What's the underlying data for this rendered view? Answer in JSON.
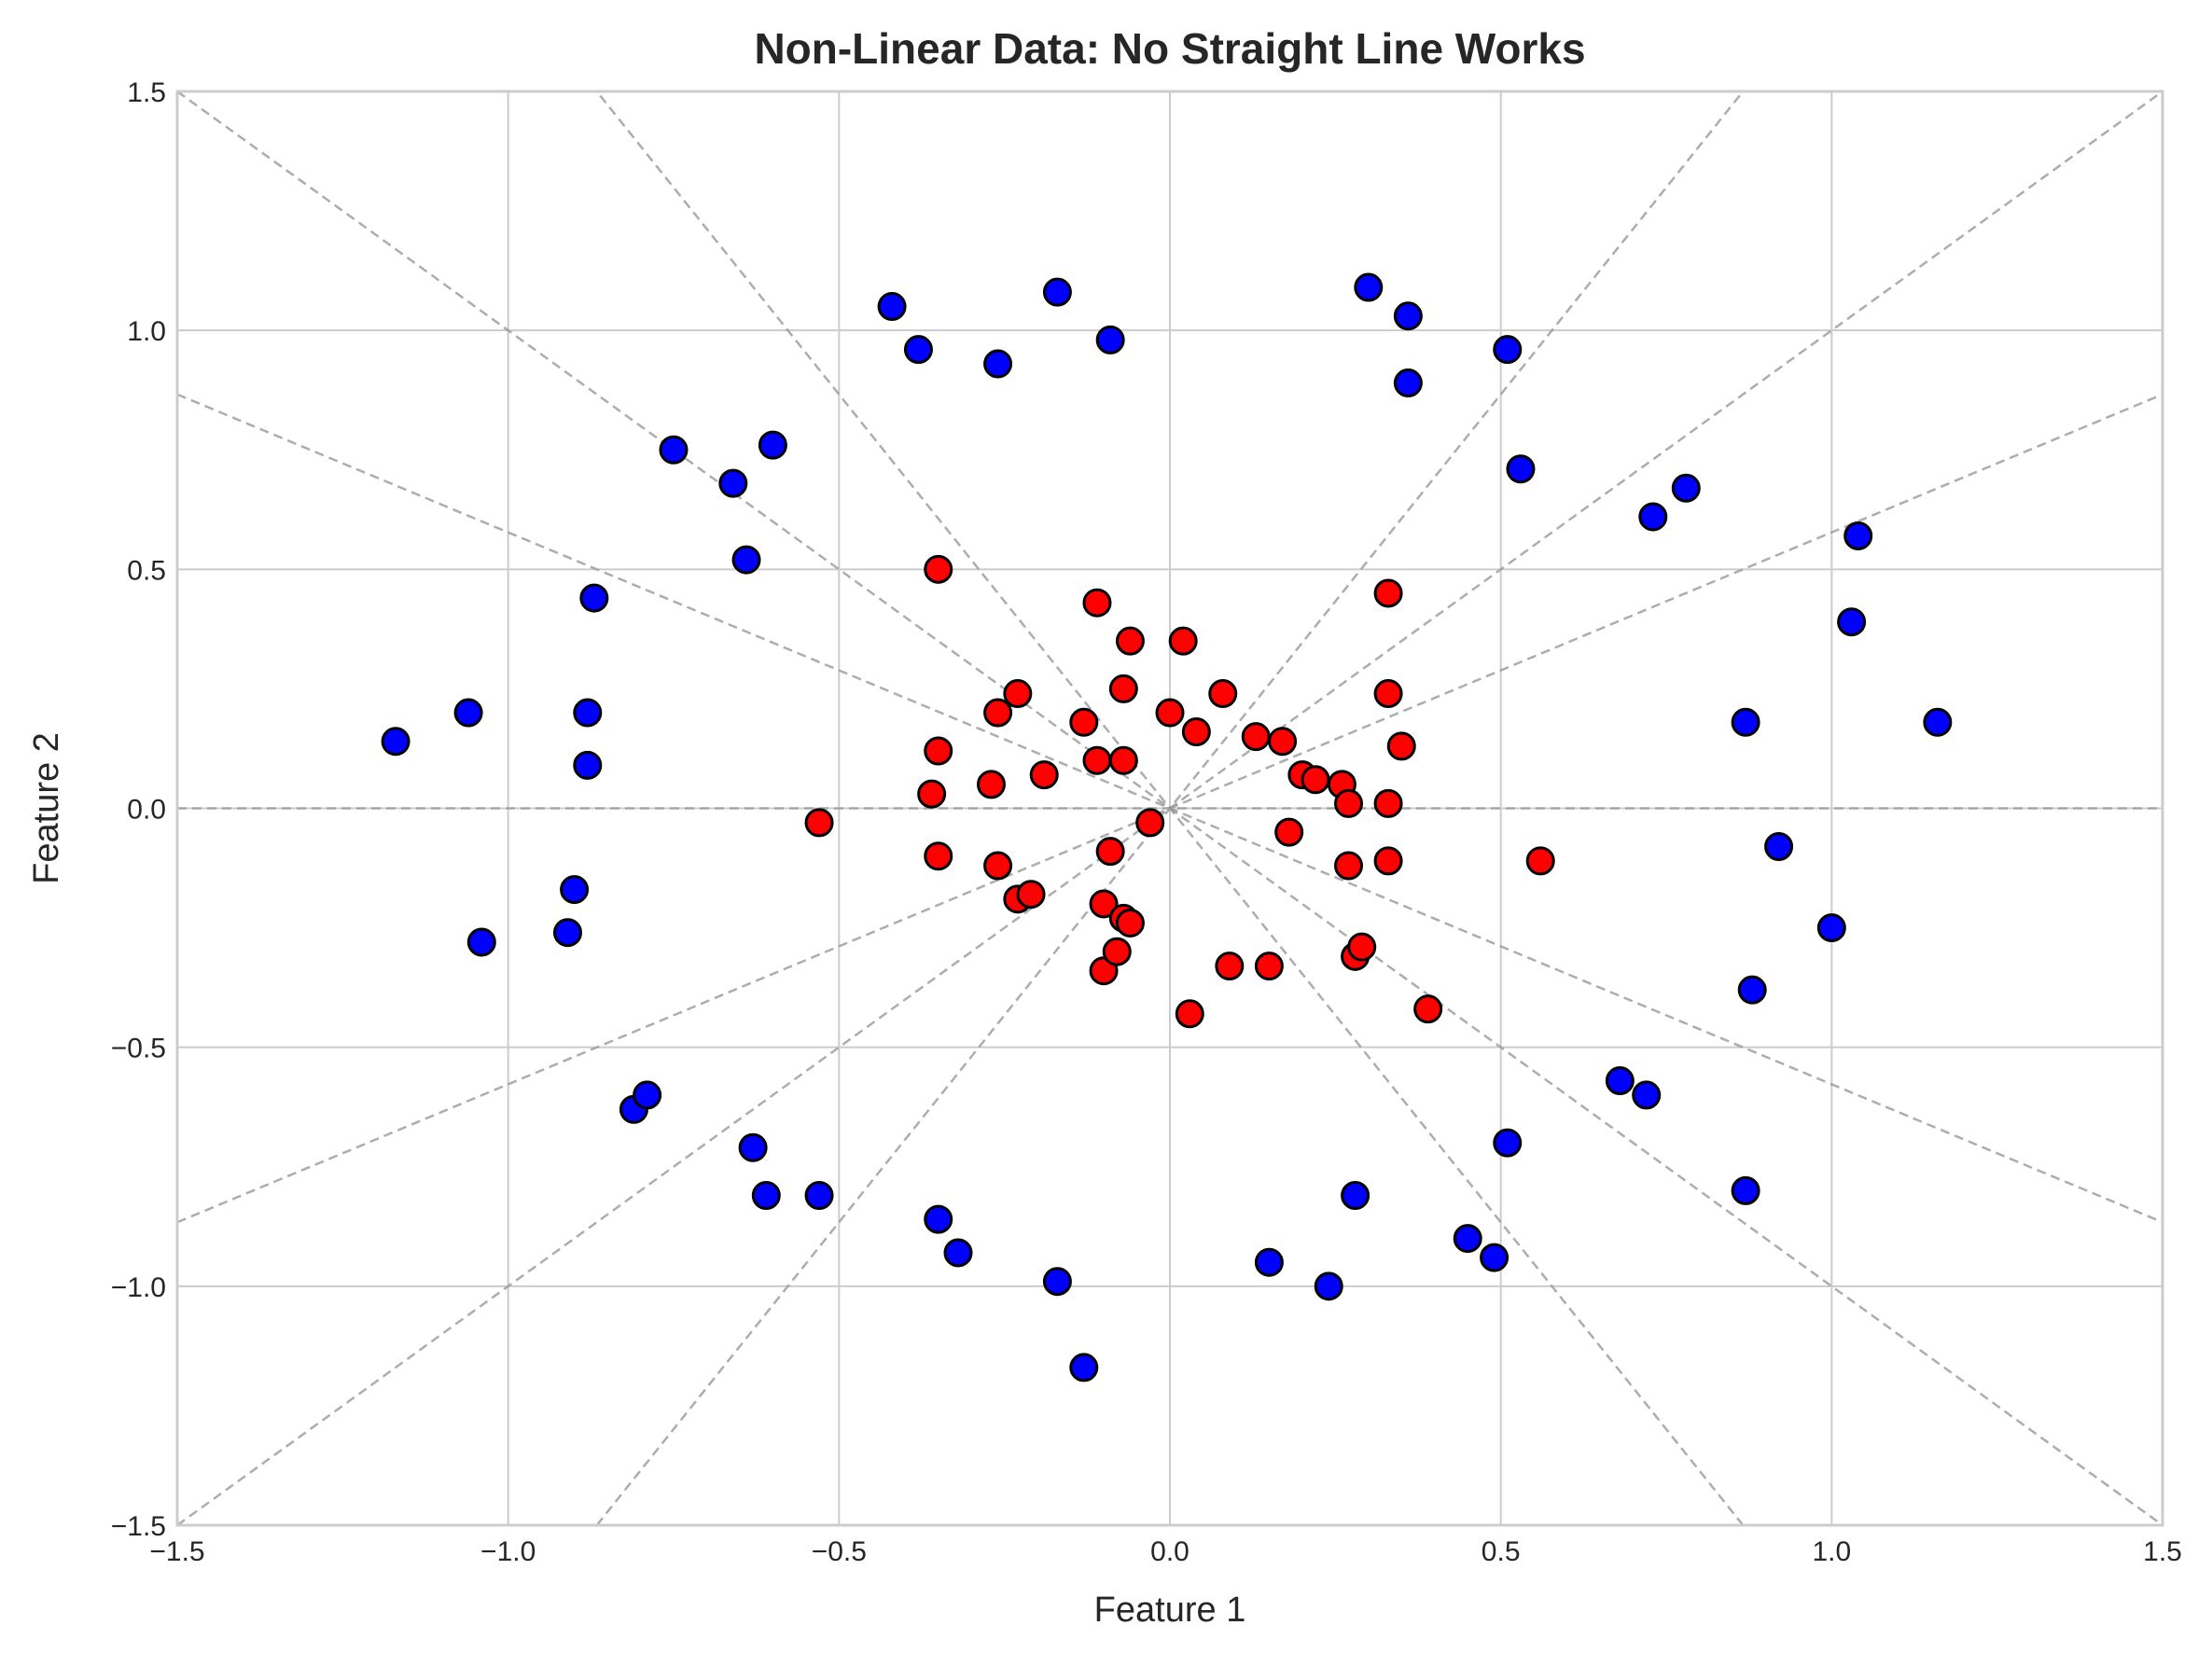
{
  "chart_data": {
    "type": "scatter",
    "title": "Non-Linear Data: No Straight Line Works",
    "xlabel": "Feature 1",
    "ylabel": "Feature 2",
    "xlim": [
      -1.5,
      1.5
    ],
    "ylim": [
      -1.5,
      1.5
    ],
    "x_ticks": [
      -1.5,
      -1.0,
      -0.5,
      0.0,
      0.5,
      1.0,
      1.5
    ],
    "y_ticks": [
      -1.5,
      -1.0,
      -0.5,
      0.0,
      0.5,
      1.0,
      1.5
    ],
    "x_tick_labels": [
      "−1.5",
      "−1.0",
      "−0.5",
      "0.0",
      "0.5",
      "1.0",
      "1.5"
    ],
    "y_tick_labels": [
      "−1.5",
      "−1.0",
      "−0.5",
      "0.0",
      "0.5",
      "1.0",
      "1.5"
    ],
    "grid": true,
    "colors": {
      "outer": "#0000ff",
      "inner": "#ff0000",
      "marker_edge": "#000000",
      "grid": "#cccccc",
      "reference_lines": "#999999"
    },
    "reference_lines_through_origin_slopes": [
      0,
      0.5774,
      1.7321,
      -0.5774,
      -1.7321,
      1,
      -1
    ],
    "series": [
      {
        "color": "#0000ff",
        "points": [
          [
            -1.17,
            0.14
          ],
          [
            -1.06,
            0.2
          ],
          [
            -1.04,
            -0.28
          ],
          [
            -0.91,
            -0.26
          ],
          [
            -0.9,
            -0.17
          ],
          [
            -0.88,
            0.2
          ],
          [
            -0.88,
            0.09
          ],
          [
            -0.87,
            0.44
          ],
          [
            -0.81,
            -0.63
          ],
          [
            -0.79,
            -0.6
          ],
          [
            -0.75,
            0.75
          ],
          [
            -0.66,
            0.68
          ],
          [
            -0.64,
            0.52
          ],
          [
            -0.6,
            0.76
          ],
          [
            -0.63,
            -0.71
          ],
          [
            -0.61,
            -0.81
          ],
          [
            -0.53,
            -0.81
          ],
          [
            -0.42,
            1.05
          ],
          [
            -0.38,
            0.96
          ],
          [
            -0.35,
            -0.86
          ],
          [
            -0.32,
            -0.93
          ],
          [
            -0.26,
            0.93
          ],
          [
            -0.17,
            1.08
          ],
          [
            -0.17,
            -0.99
          ],
          [
            -0.13,
            -1.17
          ],
          [
            -0.09,
            0.98
          ],
          [
            0.15,
            -0.95
          ],
          [
            0.24,
            -1.0
          ],
          [
            0.28,
            -0.81
          ],
          [
            0.3,
            1.09
          ],
          [
            0.36,
            1.03
          ],
          [
            0.36,
            0.89
          ],
          [
            0.45,
            -0.9
          ],
          [
            0.49,
            -0.94
          ],
          [
            0.51,
            0.96
          ],
          [
            0.51,
            -0.7
          ],
          [
            0.53,
            0.71
          ],
          [
            0.68,
            -0.57
          ],
          [
            0.72,
            -0.6
          ],
          [
            0.73,
            0.61
          ],
          [
            0.78,
            0.67
          ],
          [
            0.87,
            0.18
          ],
          [
            0.88,
            -0.38
          ],
          [
            0.87,
            -0.8
          ],
          [
            0.92,
            -0.08
          ],
          [
            1.0,
            -0.25
          ],
          [
            1.03,
            0.39
          ],
          [
            1.04,
            0.57
          ],
          [
            1.16,
            0.18
          ]
        ]
      },
      {
        "color": "#ff0000",
        "points": [
          [
            -0.53,
            -0.03
          ],
          [
            -0.35,
            0.5
          ],
          [
            -0.35,
            0.12
          ],
          [
            -0.36,
            0.03
          ],
          [
            -0.35,
            -0.1
          ],
          [
            -0.26,
            0.2
          ],
          [
            -0.27,
            0.05
          ],
          [
            -0.26,
            -0.12
          ],
          [
            -0.23,
            0.24
          ],
          [
            -0.23,
            -0.19
          ],
          [
            -0.21,
            -0.18
          ],
          [
            -0.19,
            0.07
          ],
          [
            -0.13,
            0.18
          ],
          [
            -0.11,
            0.43
          ],
          [
            -0.11,
            0.1
          ],
          [
            -0.1,
            -0.2
          ],
          [
            -0.1,
            -0.34
          ],
          [
            -0.09,
            -0.09
          ],
          [
            -0.08,
            -0.3
          ],
          [
            -0.07,
            0.25
          ],
          [
            -0.07,
            0.1
          ],
          [
            -0.07,
            -0.23
          ],
          [
            -0.06,
            -0.24
          ],
          [
            -0.06,
            0.35
          ],
          [
            -0.03,
            -0.03
          ],
          [
            0.0,
            0.2
          ],
          [
            0.02,
            0.35
          ],
          [
            0.03,
            -0.43
          ],
          [
            0.04,
            0.16
          ],
          [
            0.08,
            0.24
          ],
          [
            0.09,
            -0.33
          ],
          [
            0.13,
            0.15
          ],
          [
            0.15,
            -0.33
          ],
          [
            0.17,
            0.14
          ],
          [
            0.18,
            -0.05
          ],
          [
            0.2,
            0.07
          ],
          [
            0.22,
            0.06
          ],
          [
            0.26,
            0.05
          ],
          [
            0.27,
            0.01
          ],
          [
            0.27,
            -0.12
          ],
          [
            0.28,
            -0.31
          ],
          [
            0.29,
            -0.29
          ],
          [
            0.33,
            0.45
          ],
          [
            0.33,
            0.24
          ],
          [
            0.33,
            0.01
          ],
          [
            0.33,
            -0.11
          ],
          [
            0.35,
            0.13
          ],
          [
            0.39,
            -0.42
          ],
          [
            0.56,
            -0.11
          ]
        ]
      }
    ]
  }
}
